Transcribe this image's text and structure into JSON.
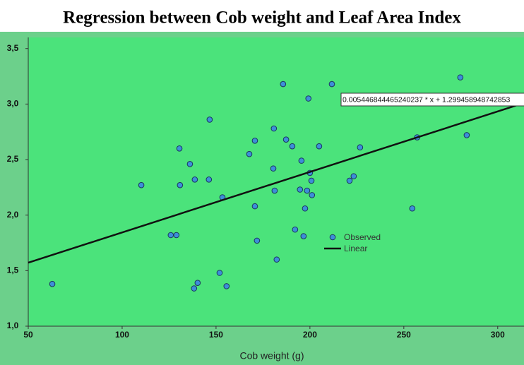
{
  "chart_data": {
    "type": "scatter",
    "title": "Regression between Cob weight and Leaf Area Index",
    "xlabel": "Cob weight (g)",
    "xlim": [
      50,
      314
    ],
    "ylim": [
      1.0,
      3.6
    ],
    "xticks": [
      50,
      100,
      150,
      200,
      250,
      300
    ],
    "yticks": [
      {
        "value": 1.0,
        "label": "1,0"
      },
      {
        "value": 1.5,
        "label": "1,5"
      },
      {
        "value": 2.0,
        "label": "2,0"
      },
      {
        "value": 2.5,
        "label": "2,5"
      },
      {
        "value": 3.0,
        "label": "3,0"
      },
      {
        "value": 3.5,
        "label": "3,5"
      }
    ],
    "series": [
      {
        "name": "Observed",
        "color": "#3d8fd8",
        "x": [
          62.8,
          110.2,
          125.9,
          128.9,
          130.5,
          130.8,
          136.1,
          138.7,
          138.3,
          140.2,
          146.2,
          146.6,
          151.9,
          153.4,
          155.6,
          167.7,
          170.7,
          170.7,
          171.8,
          180.5,
          180.8,
          181.2,
          182.3,
          185.7,
          187.3,
          190.6,
          192.1,
          194.7,
          195.5,
          196.6,
          197.4,
          198.5,
          199.2,
          200.0,
          200.8,
          201.1,
          204.9,
          211.7,
          221.1,
          223.3,
          226.7,
          254.5,
          257.1,
          280.1,
          283.5
        ],
        "values": [
          1.38,
          2.27,
          1.82,
          1.82,
          2.6,
          2.27,
          2.46,
          2.32,
          1.34,
          1.39,
          2.32,
          2.86,
          1.48,
          2.16,
          1.36,
          2.55,
          2.67,
          2.08,
          1.77,
          2.42,
          2.78,
          2.22,
          1.6,
          3.18,
          2.68,
          2.62,
          1.87,
          2.23,
          2.49,
          1.81,
          2.06,
          2.22,
          3.05,
          2.38,
          2.31,
          2.18,
          2.62,
          3.18,
          2.31,
          2.35,
          2.61,
          2.06,
          2.7,
          3.24,
          2.72
        ]
      }
    ],
    "fit": {
      "name": "Linear",
      "color": "#111111",
      "slope": 0.005446844465240237,
      "intercept": 1.299458948742853,
      "label": "0.005446844465240237 * x + 1.299458948742853"
    }
  }
}
